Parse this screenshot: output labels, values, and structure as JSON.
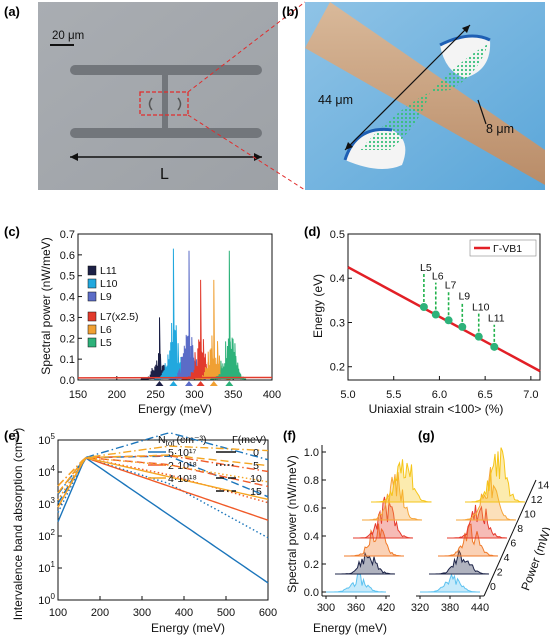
{
  "panels": {
    "a": {
      "label": "(a)",
      "scale_bar": "20 μm",
      "length_label": "L"
    },
    "b": {
      "label": "(b)",
      "dim_long": "44 μm",
      "dim_short": "8 μm"
    },
    "c": {
      "label": "(c)"
    },
    "d": {
      "label": "(d)"
    },
    "e": {
      "label": "(e)",
      "legend_header_n": "N",
      "legend_header_n_sub": "tot",
      "legend_header_n_unit": "(cm⁻³)",
      "legend_header_gamma": "Γ(meV)"
    },
    "f": {
      "label": "(f)"
    },
    "g": {
      "label": "(g)"
    }
  },
  "chart_data": [
    {
      "panel": "c",
      "type": "spectrum",
      "xlabel": "Energy (meV)",
      "ylabel": "Spectral power (nW/meV)",
      "xlim": [
        150,
        400
      ],
      "ylim": [
        0,
        0.7
      ],
      "xticks": [
        150,
        200,
        250,
        300,
        350,
        400
      ],
      "yticks": [
        0.0,
        0.1,
        0.2,
        0.3,
        0.4,
        0.5,
        0.6,
        0.7
      ],
      "series": [
        {
          "name": "L11",
          "color": "#1c2046",
          "peak_energy": 255,
          "peak_power": 0.3
        },
        {
          "name": "L10",
          "color": "#22a8de",
          "peak_energy": 273,
          "peak_power": 0.63
        },
        {
          "name": "L9",
          "color": "#5b6cc7",
          "peak_energy": 293,
          "peak_power": 0.62
        },
        {
          "name": "L7(x2.5)",
          "color": "#e23a2c",
          "peak_energy": 308,
          "peak_power": 0.48
        },
        {
          "name": "L6",
          "color": "#f0a033",
          "peak_energy": 325,
          "peak_power": 0.48
        },
        {
          "name": "L5",
          "color": "#2db27a",
          "peak_energy": 345,
          "peak_power": 0.62
        }
      ]
    },
    {
      "panel": "d",
      "type": "scatter",
      "xlabel": "Uniaxial strain <100> (%)",
      "ylabel": "Energy (eV)",
      "xlim": [
        5.0,
        7.1
      ],
      "ylim": [
        0.17,
        0.5
      ],
      "xticks": [
        5.0,
        5.5,
        6.0,
        6.5,
        7.0
      ],
      "yticks": [
        0.2,
        0.3,
        0.4,
        0.5
      ],
      "line": {
        "name": "Γ-VB1",
        "x": [
          5.0,
          7.1
        ],
        "y": [
          0.425,
          0.19
        ]
      },
      "points": [
        {
          "label": "L5",
          "x": 5.83,
          "y": 0.335,
          "label_y": 0.41
        },
        {
          "label": "L6",
          "x": 5.96,
          "y": 0.318,
          "label_y": 0.39
        },
        {
          "label": "L7",
          "x": 6.1,
          "y": 0.305,
          "label_y": 0.37
        },
        {
          "label": "L9",
          "x": 6.25,
          "y": 0.29,
          "label_y": 0.345
        },
        {
          "label": "L10",
          "x": 6.43,
          "y": 0.268,
          "label_y": 0.32
        },
        {
          "label": "L11",
          "x": 6.6,
          "y": 0.245,
          "label_y": 0.295
        }
      ]
    },
    {
      "panel": "e",
      "type": "line",
      "log_y": true,
      "xlabel": "Energy (meV)",
      "ylabel": "Intervalence band absorption (cm⁻¹)",
      "xlim": [
        100,
        600
      ],
      "ylim_exp": [
        0,
        5
      ],
      "xticks": [
        100,
        200,
        300,
        400,
        500,
        600
      ],
      "yticks_exp": [
        0,
        1,
        2,
        3,
        4,
        5
      ],
      "densities": [
        {
          "label": "5·10¹⁷",
          "color": "#1b75bb"
        },
        {
          "label": "2·10¹⁸",
          "color": "#f05a28"
        },
        {
          "label": "4·10¹⁸",
          "color": "#f5a623"
        }
      ],
      "gammas": [
        {
          "label": "0",
          "dash": ""
        },
        {
          "label": "5",
          "dash": "1.5,2.5"
        },
        {
          "label": "10",
          "dash": "8,4"
        },
        {
          "label": "15",
          "dash": "8,3,1.5,3"
        }
      ]
    },
    {
      "panel": "f",
      "type": "waterfall",
      "xlabel": "Energy (meV)",
      "ylabel": "Spectral power (nW/meV)",
      "xticks": [
        300,
        360,
        420
      ],
      "yticks": [
        0.0,
        0.2,
        0.4,
        0.6,
        0.8,
        1.0
      ]
    },
    {
      "panel": "g",
      "type": "waterfall",
      "xlabel": "",
      "zlabel": "Power (mW)",
      "xticks": [
        320,
        380,
        440
      ],
      "zticks": [
        0,
        2,
        4,
        6,
        8,
        10,
        12,
        14
      ]
    }
  ]
}
